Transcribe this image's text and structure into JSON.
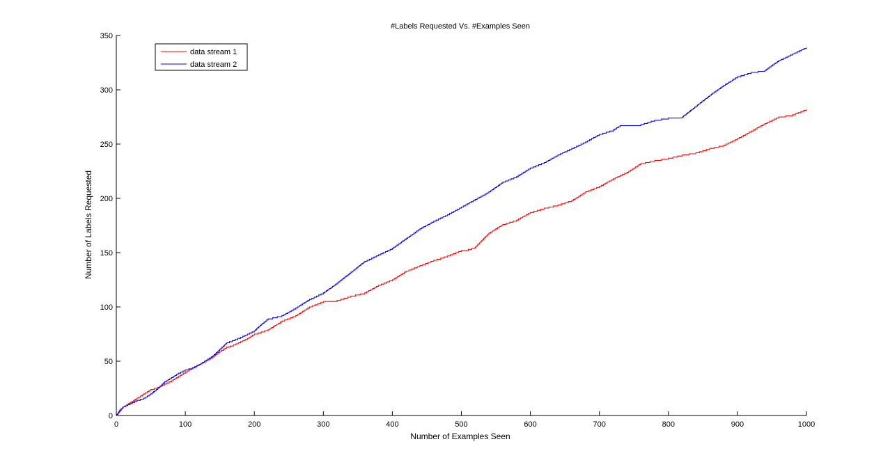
{
  "chart_data": {
    "type": "line",
    "title": "#Labels Requested Vs. #Examples Seen",
    "xlabel": "Number of Examples Seen",
    "ylabel": "Number of Labels Requested",
    "xlim": [
      0,
      1000
    ],
    "ylim": [
      0,
      350
    ],
    "x_ticks": [
      0,
      100,
      200,
      300,
      400,
      500,
      600,
      700,
      800,
      900,
      1000
    ],
    "y_ticks": [
      0,
      50,
      100,
      150,
      200,
      250,
      300,
      350
    ],
    "grid": false,
    "legend_position": "top-left",
    "series": [
      {
        "name": "data stream 1",
        "color": "#ff0000",
        "points": [
          [
            0,
            0
          ],
          [
            5,
            4
          ],
          [
            10,
            8
          ],
          [
            20,
            12
          ],
          [
            30,
            16
          ],
          [
            40,
            20
          ],
          [
            50,
            24
          ],
          [
            60,
            26
          ],
          [
            70,
            29
          ],
          [
            80,
            32
          ],
          [
            90,
            36
          ],
          [
            100,
            40
          ],
          [
            120,
            47
          ],
          [
            140,
            54
          ],
          [
            150,
            59
          ],
          [
            160,
            63
          ],
          [
            170,
            65
          ],
          [
            180,
            68
          ],
          [
            190,
            71
          ],
          [
            200,
            75
          ],
          [
            220,
            79
          ],
          [
            240,
            87
          ],
          [
            260,
            92
          ],
          [
            280,
            100
          ],
          [
            300,
            105
          ],
          [
            320,
            106
          ],
          [
            340,
            110
          ],
          [
            360,
            113
          ],
          [
            380,
            120
          ],
          [
            400,
            125
          ],
          [
            420,
            133
          ],
          [
            440,
            138
          ],
          [
            460,
            143
          ],
          [
            480,
            147
          ],
          [
            500,
            152
          ],
          [
            510,
            153
          ],
          [
            520,
            155
          ],
          [
            540,
            168
          ],
          [
            560,
            176
          ],
          [
            580,
            180
          ],
          [
            600,
            187
          ],
          [
            620,
            191
          ],
          [
            640,
            194
          ],
          [
            660,
            198
          ],
          [
            680,
            206
          ],
          [
            700,
            211
          ],
          [
            720,
            218
          ],
          [
            740,
            224
          ],
          [
            760,
            232
          ],
          [
            780,
            235
          ],
          [
            800,
            237
          ],
          [
            820,
            240
          ],
          [
            840,
            242
          ],
          [
            860,
            246
          ],
          [
            880,
            249
          ],
          [
            900,
            255
          ],
          [
            920,
            262
          ],
          [
            940,
            269
          ],
          [
            960,
            275
          ],
          [
            980,
            277
          ],
          [
            1000,
            282
          ]
        ]
      },
      {
        "name": "data stream 2",
        "color": "#0000ff",
        "points": [
          [
            0,
            0
          ],
          [
            5,
            5
          ],
          [
            10,
            8
          ],
          [
            20,
            11
          ],
          [
            30,
            14
          ],
          [
            40,
            16
          ],
          [
            50,
            20
          ],
          [
            60,
            25
          ],
          [
            70,
            31
          ],
          [
            80,
            35
          ],
          [
            90,
            39
          ],
          [
            100,
            42
          ],
          [
            110,
            44
          ],
          [
            120,
            47
          ],
          [
            140,
            55
          ],
          [
            160,
            67
          ],
          [
            180,
            72
          ],
          [
            200,
            78
          ],
          [
            210,
            84
          ],
          [
            220,
            89
          ],
          [
            240,
            92
          ],
          [
            260,
            99
          ],
          [
            280,
            107
          ],
          [
            300,
            113
          ],
          [
            320,
            122
          ],
          [
            340,
            132
          ],
          [
            360,
            142
          ],
          [
            380,
            148
          ],
          [
            400,
            154
          ],
          [
            420,
            163
          ],
          [
            440,
            172
          ],
          [
            460,
            179
          ],
          [
            480,
            185
          ],
          [
            500,
            192
          ],
          [
            520,
            199
          ],
          [
            540,
            206
          ],
          [
            560,
            215
          ],
          [
            580,
            220
          ],
          [
            600,
            228
          ],
          [
            620,
            233
          ],
          [
            640,
            240
          ],
          [
            660,
            246
          ],
          [
            680,
            252
          ],
          [
            700,
            259
          ],
          [
            720,
            263
          ],
          [
            730,
            267
          ],
          [
            760,
            268
          ],
          [
            780,
            272
          ],
          [
            800,
            274
          ],
          [
            820,
            275
          ],
          [
            840,
            285
          ],
          [
            860,
            295
          ],
          [
            880,
            304
          ],
          [
            900,
            312
          ],
          [
            920,
            316
          ],
          [
            940,
            318
          ],
          [
            960,
            327
          ],
          [
            980,
            333
          ],
          [
            1000,
            339
          ]
        ]
      }
    ]
  }
}
